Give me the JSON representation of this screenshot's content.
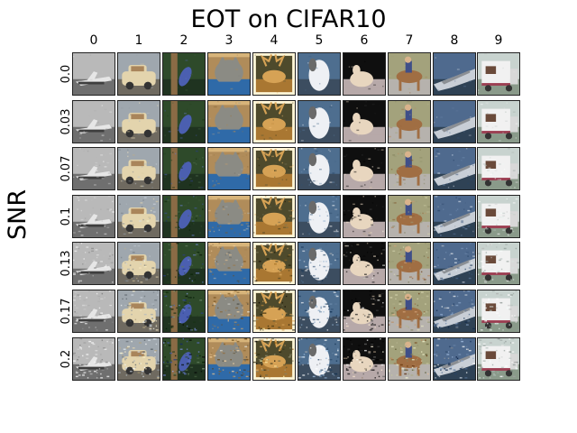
{
  "figure": {
    "title": "EOT on CIFAR10",
    "y_axis_title": "SNR"
  },
  "columns": [
    "0",
    "1",
    "2",
    "3",
    "4",
    "5",
    "6",
    "7",
    "8",
    "9"
  ],
  "rows": [
    "0.0",
    "0.03",
    "0.07",
    "0.1",
    "0.13",
    "0.17",
    "0.2"
  ],
  "tiles": [
    {
      "class_index": 0,
      "depicts": "airplane",
      "sky": "#b9b9b9",
      "ground": "#6f6f6f",
      "subject": "#e6e6e6",
      "accent": "#3e3e3e"
    },
    {
      "class_index": 1,
      "depicts": "car",
      "sky": "#9fa7ae",
      "ground": "#6f6a60",
      "subject": "#e3d4ad",
      "accent": "#a9855b"
    },
    {
      "class_index": 2,
      "depicts": "bird",
      "sky": "#2e4a2a",
      "ground": "#1f3320",
      "subject": "#4b5fb0",
      "accent": "#8a6b45"
    },
    {
      "class_index": 3,
      "depicts": "cat",
      "sky": "#b08c5a",
      "ground": "#2f6aa8",
      "subject": "#8b8b84",
      "accent": "#d7b47a"
    },
    {
      "class_index": 4,
      "depicts": "deer",
      "sky": "#4e4a2c",
      "ground": "#a97732",
      "subject": "#d6a255",
      "accent": "#fff5d6"
    },
    {
      "class_index": 5,
      "depicts": "dog",
      "sky": "#4e6e8f",
      "ground": "#3c4d60",
      "subject": "#eef0f4",
      "accent": "#6a6a6a"
    },
    {
      "class_index": 6,
      "depicts": "frog",
      "sky": "#0f0f0f",
      "ground": "#b7a9a9",
      "subject": "#e8d6bf",
      "accent": "#3a2f2a"
    },
    {
      "class_index": 7,
      "depicts": "horse",
      "sky": "#a3a27c",
      "ground": "#b6b2ad",
      "subject": "#a06e43",
      "accent": "#3f4f88"
    },
    {
      "class_index": 8,
      "depicts": "ship",
      "sky": "#4f6a8e",
      "ground": "#2f4255",
      "subject": "#c8ced6",
      "accent": "#8b8f94"
    },
    {
      "class_index": 9,
      "depicts": "truck",
      "sky": "#c8d3cf",
      "ground": "#8a9a8a",
      "subject": "#f1f1f1",
      "accent": "#9c3f52"
    }
  ]
}
